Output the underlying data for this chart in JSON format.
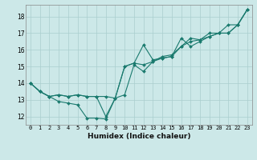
{
  "xlabel": "Humidex (Indice chaleur)",
  "ylabel": "",
  "bg_color": "#cce8e8",
  "line_color": "#1a7a6e",
  "grid_color": "#aacece",
  "xlim": [
    -0.5,
    23.5
  ],
  "ylim": [
    11.5,
    18.7
  ],
  "xticks": [
    0,
    1,
    2,
    3,
    4,
    5,
    6,
    7,
    8,
    9,
    10,
    11,
    12,
    13,
    14,
    15,
    16,
    17,
    18,
    19,
    20,
    21,
    22,
    23
  ],
  "yticks": [
    12,
    13,
    14,
    15,
    16,
    17,
    18
  ],
  "series": [
    [
      14.0,
      13.5,
      13.2,
      12.9,
      12.8,
      12.7,
      11.9,
      11.9,
      11.85,
      13.1,
      13.3,
      15.1,
      14.7,
      15.3,
      15.6,
      15.7,
      16.2,
      16.5,
      16.6,
      17.0,
      17.0,
      17.5,
      17.5,
      18.4
    ],
    [
      14.0,
      13.5,
      13.2,
      13.3,
      13.2,
      13.3,
      13.2,
      13.2,
      13.2,
      13.1,
      15.0,
      15.2,
      16.3,
      15.4,
      15.5,
      15.6,
      16.2,
      16.7,
      16.6,
      16.8,
      17.0,
      17.0,
      17.5,
      18.4
    ],
    [
      14.0,
      13.5,
      13.2,
      13.3,
      13.2,
      13.3,
      13.2,
      13.2,
      12.0,
      13.1,
      15.0,
      15.2,
      15.1,
      15.3,
      15.5,
      15.6,
      16.7,
      16.2,
      16.5,
      16.8,
      17.0,
      17.0,
      17.5,
      18.4
    ]
  ],
  "tick_fontsize": 5.0,
  "xlabel_fontsize": 6.5,
  "marker_size": 2.0,
  "line_width": 0.8
}
